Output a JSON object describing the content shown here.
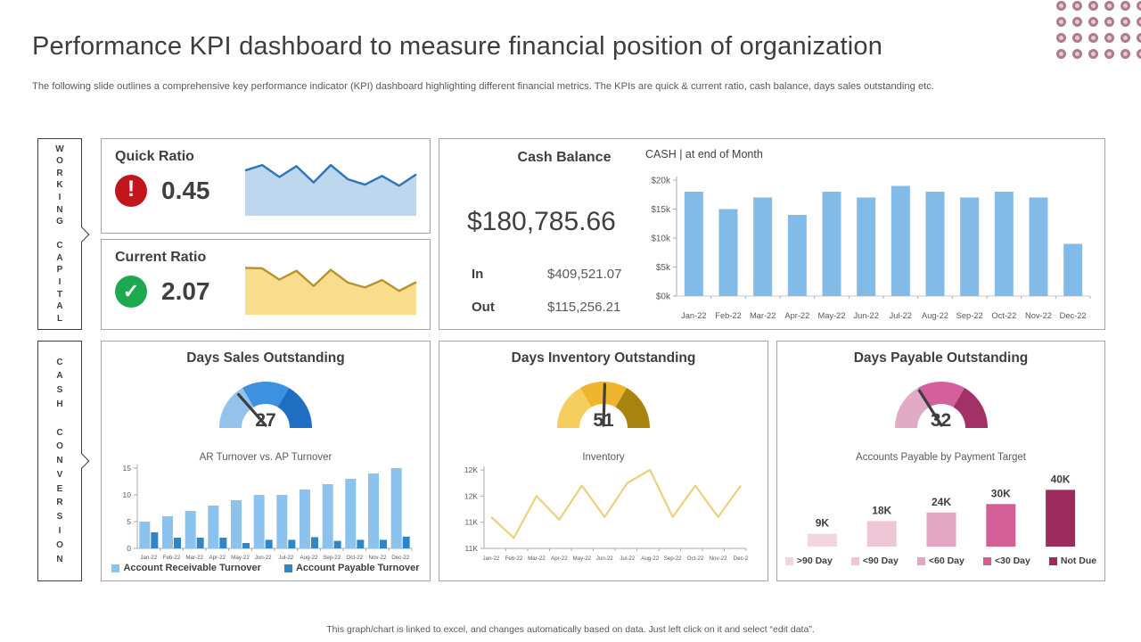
{
  "header": {
    "title": "Performance KPI dashboard to measure financial position of organization",
    "subtitle": "The following slide outlines a comprehensive key performance indicator (KPI) dashboard highlighting different financial metrics. The KPIs are quick &  current ratio, cash balance, days sales outstanding etc."
  },
  "side_labels": {
    "working_capital": "WORKING CAPITAL",
    "cash_conversion": "CASH CONVERSION"
  },
  "quick_ratio": {
    "title": "Quick Ratio",
    "value": "0.45",
    "icon": "alert-exclamation-icon",
    "icon_glyph": "!",
    "icon_color": "#c3161c"
  },
  "current_ratio": {
    "title": "Current Ratio",
    "value": "2.07",
    "icon": "check-icon",
    "icon_glyph": "✓",
    "icon_color": "#1ca94f"
  },
  "cash_balance": {
    "title": "Cash Balance",
    "chart_title": "CASH | at end of Month",
    "balance": "$180,785.66",
    "in_label": "In",
    "in_value": "$409,521.07",
    "out_label": "Out",
    "out_value": "$115,256.21"
  },
  "dso": {
    "title": "Days Sales Outstanding",
    "gauge_value": "27",
    "chart_title": "AR Turnover vs. AP Turnover"
  },
  "dio": {
    "title": "Days Inventory Outstanding",
    "gauge_value": "51",
    "chart_title": "Inventory"
  },
  "dpo": {
    "title": "Days Payable Outstanding",
    "gauge_value": "32",
    "chart_title": "Accounts Payable by Payment Target"
  },
  "footer": "This graph/chart is linked to excel, and changes automatically based on data. Just left click on it and select “edit data”.",
  "chart_data": [
    {
      "id": "quick_ratio_trend",
      "type": "area",
      "title": "Quick Ratio trend sparkline",
      "values": [
        0.8,
        0.9,
        0.68,
        0.88,
        0.58,
        0.9,
        0.64,
        0.54,
        0.7,
        0.52,
        0.73
      ],
      "ylim": [
        0,
        1
      ],
      "color": "#2e75b6",
      "fill": "#bdd7ee"
    },
    {
      "id": "current_ratio_trend",
      "type": "area",
      "title": "Current Ratio trend sparkline",
      "values": [
        0.92,
        0.91,
        0.68,
        0.86,
        0.55,
        0.88,
        0.62,
        0.52,
        0.67,
        0.45,
        0.63
      ],
      "ylim": [
        0,
        1
      ],
      "color": "#b8922d",
      "fill": "#f8dd8d"
    },
    {
      "id": "cash_by_month",
      "type": "bar",
      "title": "CASH | at end of Month",
      "categories": [
        "Jan-22",
        "Feb-22",
        "Mar-22",
        "Apr-22",
        "May-22",
        "Jun-22",
        "Jul-22",
        "Aug-22",
        "Sep-22",
        "Oct-22",
        "Nov-22",
        "Dec-22"
      ],
      "values": [
        18,
        15,
        17,
        14,
        18,
        17,
        19,
        18,
        17,
        18,
        17,
        9
      ],
      "unit": "$k",
      "yticks": [
        "$0k",
        "$5k",
        "$10k",
        "$15k",
        "$20k"
      ],
      "ylim": [
        0,
        20
      ],
      "color": "#82bbe8",
      "grid": false,
      "legend": "none"
    },
    {
      "id": "dso_gauge",
      "type": "gauge",
      "title": "Days Sales Outstanding",
      "value": 27,
      "min": 0,
      "max": 100,
      "segment_colors": [
        "#94c2eb",
        "#3e90e0",
        "#1f6ec2"
      ],
      "needle_color": "#3f3f3f"
    },
    {
      "id": "ar_ap_turnover",
      "type": "bar",
      "title": "AR Turnover vs. AP Turnover",
      "categories": [
        "Jan-22",
        "Feb-22",
        "Mar-22",
        "Apr-22",
        "May-22",
        "Jun-22",
        "Jul-22",
        "Aug-22",
        "Sep-22",
        "Oct-22",
        "Nov-22",
        "Dec-22"
      ],
      "series": [
        {
          "name": "Account Receivable Turnover",
          "color": "#8cc3ee",
          "values": [
            5,
            6,
            7,
            8,
            9,
            10,
            10,
            11,
            12,
            13,
            14,
            15
          ]
        },
        {
          "name": "Account Payable Turnover",
          "color": "#2e86c8",
          "values": [
            3,
            2,
            2,
            2,
            1,
            1.6,
            1.6,
            2.1,
            1.4,
            1.6,
            1.6,
            2.2
          ]
        }
      ],
      "yticks": [
        "0",
        "5",
        "10",
        "15"
      ],
      "ylim": [
        0,
        15
      ],
      "grid": false,
      "legend_position": "bottom"
    },
    {
      "id": "dio_gauge",
      "type": "gauge",
      "title": "Days Inventory Outstanding",
      "value": 51,
      "min": 0,
      "max": 100,
      "segment_colors": [
        "#f6cd5f",
        "#efb52d",
        "#a9830f"
      ],
      "needle_color": "#3f3f3f"
    },
    {
      "id": "inventory",
      "type": "line",
      "title": "Inventory",
      "categories": [
        "Jan-22",
        "Feb-22",
        "Mar-22",
        "Apr-22",
        "May-22",
        "Jun-22",
        "Jul-22",
        "Aug-22",
        "Sep-22",
        "Oct-22",
        "Nov-22",
        "Dec-2"
      ],
      "values": [
        11.6,
        11.2,
        12.0,
        11.55,
        12.2,
        11.6,
        12.25,
        12.5,
        11.6,
        12.2,
        11.6,
        12.2
      ],
      "yticks": [
        "11K",
        "11K",
        "12K",
        "12K"
      ],
      "ylim": [
        11,
        12.5
      ],
      "color": "#edd07c",
      "grid": false
    },
    {
      "id": "dpo_gauge",
      "type": "gauge",
      "title": "Days Payable Outstanding",
      "value": 32,
      "min": 0,
      "max": 100,
      "segment_colors": [
        "#e2abc5",
        "#d55f9d",
        "#a23266"
      ],
      "needle_color": "#3f3f3f"
    },
    {
      "id": "payment_target",
      "type": "bar",
      "title": "Accounts Payable by Payment Target",
      "categories": [
        ">90 Day",
        "<90 Day",
        "<60 Day",
        "<30 Day",
        "Not Due"
      ],
      "values": [
        9,
        18,
        24,
        30,
        40
      ],
      "data_labels": [
        "9K",
        "18K",
        "24K",
        "30K",
        "40K"
      ],
      "colors": [
        "#f1d6e0",
        "#eec6d5",
        "#e3a6c1",
        "#d45f97",
        "#9c2b5e"
      ],
      "ylim": [
        0,
        44
      ],
      "grid": false,
      "legend_position": "bottom"
    }
  ]
}
